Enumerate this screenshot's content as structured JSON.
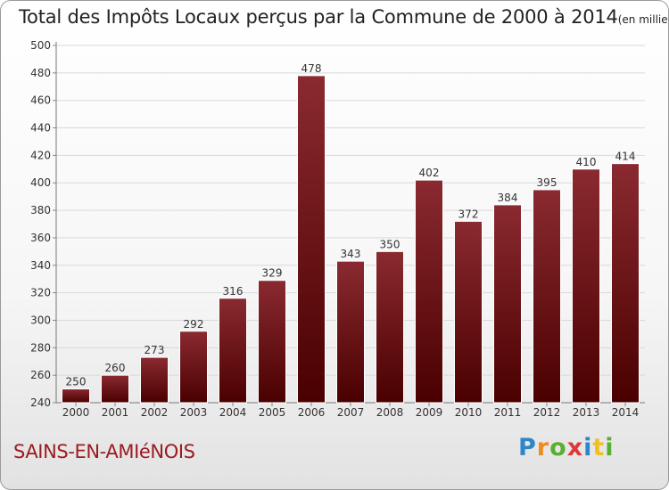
{
  "chart_data": {
    "type": "bar",
    "title": "Total des Impôts Locaux perçus par la Commune de 2000 à 2014",
    "subtitle": "(en milliers d'€)",
    "categories": [
      "2000",
      "2001",
      "2002",
      "2003",
      "2004",
      "2005",
      "2006",
      "2007",
      "2008",
      "2009",
      "2010",
      "2011",
      "2012",
      "2013",
      "2014"
    ],
    "values": [
      250,
      260,
      273,
      292,
      316,
      329,
      478,
      343,
      350,
      402,
      372,
      384,
      395,
      410,
      414
    ],
    "ylim": [
      240,
      500
    ],
    "yticks": [
      240,
      260,
      280,
      300,
      320,
      340,
      360,
      380,
      400,
      420,
      440,
      460,
      480,
      500
    ],
    "grid": true,
    "bar_color_top": "#8a2a30",
    "bar_color_bottom": "#4a0000"
  },
  "commune": "SAINS-EN-AMIéNOIS",
  "logo": {
    "letters": [
      "P",
      "r",
      "o",
      "x",
      "i",
      "t",
      "i"
    ],
    "colors": [
      "#2e86c9",
      "#f08a1c",
      "#58b030",
      "#e03838",
      "#2e86c9",
      "#f0c020",
      "#58b030"
    ]
  },
  "colors": {
    "commune": "#9b1c20",
    "grid": "#d9d9d9"
  }
}
